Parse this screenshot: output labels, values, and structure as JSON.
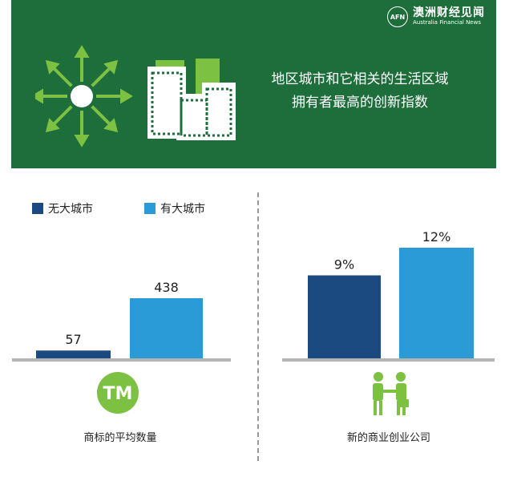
{
  "brand": {
    "mark": "AFN",
    "name_cn": "澳洲财经见闻",
    "name_en": "Australia Financial News"
  },
  "headline": {
    "line1": "地区城市和它相关的生活区域",
    "line2": "拥有者最高的创新指数"
  },
  "colors": {
    "banner": "#1e6e3c",
    "icon_green": "#7cc142",
    "no_big_city": "#1b4a80",
    "has_big_city": "#2b9bd8",
    "baseline": "#b4b4b4"
  },
  "legend": {
    "no_big_city": "无大城市",
    "has_big_city": "有大城市"
  },
  "icons": {
    "banner_left": "sun-arrows-icon",
    "banner_right": "city-buildings-icon",
    "trademark": "tm-badge-icon",
    "business": "handshake-people-icon"
  },
  "tm_badge_text": "TM",
  "chart_data": [
    {
      "type": "bar",
      "categories": [
        "无大城市",
        "有大城市"
      ],
      "values": [
        57,
        438
      ],
      "value_labels": [
        "57",
        "438"
      ],
      "caption": "商标的平均数量",
      "ylim": [
        0,
        438
      ]
    },
    {
      "type": "bar",
      "categories": [
        "无大城市",
        "有大城市"
      ],
      "values": [
        9,
        12
      ],
      "value_labels": [
        "9%",
        "12%"
      ],
      "caption": "新的商业创业公司",
      "unit": "%",
      "ylim": [
        0,
        12
      ]
    }
  ]
}
